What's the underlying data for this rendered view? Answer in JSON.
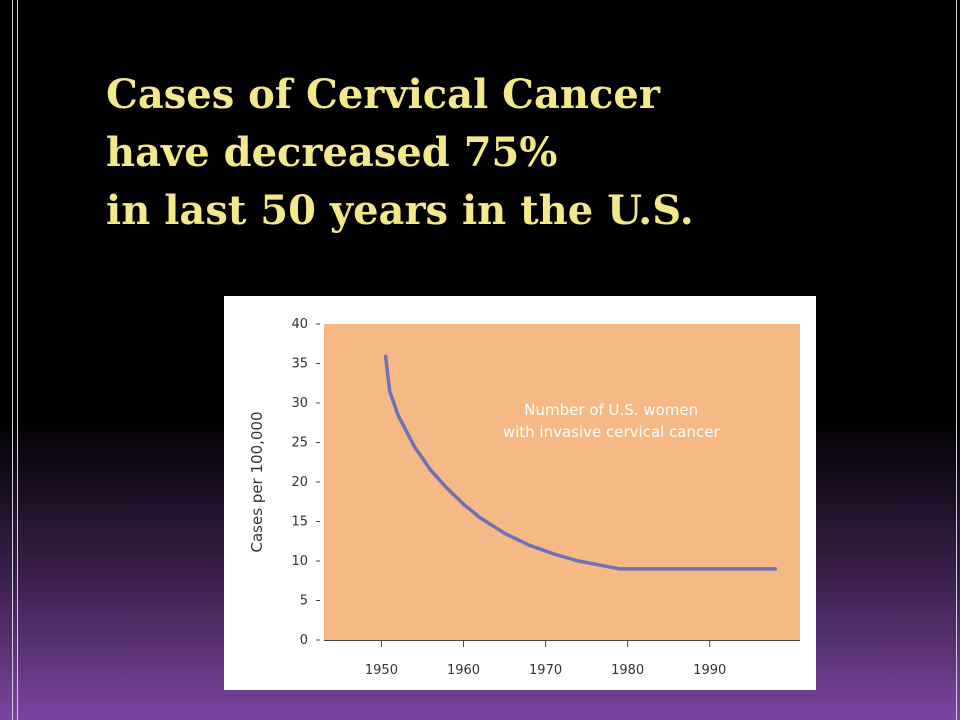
{
  "slide": {
    "title_lines": [
      "Cases of Cervical Cancer",
      "have decreased 75%",
      "in last 50 years in the U.S."
    ]
  },
  "chart_data": {
    "type": "line",
    "title": "",
    "xlabel": "",
    "ylabel": "Cases per 100,000",
    "xlim": [
      1943,
      2001
    ],
    "ylim": [
      0,
      40
    ],
    "x_ticks": [
      1950,
      1960,
      1970,
      1980,
      1990
    ],
    "y_ticks": [
      0,
      5,
      10,
      15,
      20,
      25,
      30,
      35,
      40
    ],
    "grid": false,
    "plot_background": "#f6b985",
    "series": [
      {
        "color": "#6b72b8",
        "points": [
          {
            "x": 1950.5,
            "y": 35.9
          },
          {
            "x": 1951,
            "y": 31.5
          },
          {
            "x": 1952,
            "y": 28.5
          },
          {
            "x": 1954,
            "y": 24.5
          },
          {
            "x": 1956,
            "y": 21.5
          },
          {
            "x": 1958,
            "y": 19.2
          },
          {
            "x": 1960,
            "y": 17.2
          },
          {
            "x": 1962,
            "y": 15.5
          },
          {
            "x": 1965,
            "y": 13.5
          },
          {
            "x": 1968,
            "y": 12.0
          },
          {
            "x": 1971,
            "y": 10.9
          },
          {
            "x": 1974,
            "y": 10.0
          },
          {
            "x": 1977,
            "y": 9.4
          },
          {
            "x": 1979,
            "y": 9.0
          },
          {
            "x": 1998,
            "y": 9.0
          }
        ]
      }
    ],
    "annotations": [
      {
        "lines": [
          "Number of U.S. women",
          "with invasive cervical cancer"
        ],
        "x": 1978,
        "y": 28.5
      }
    ]
  }
}
